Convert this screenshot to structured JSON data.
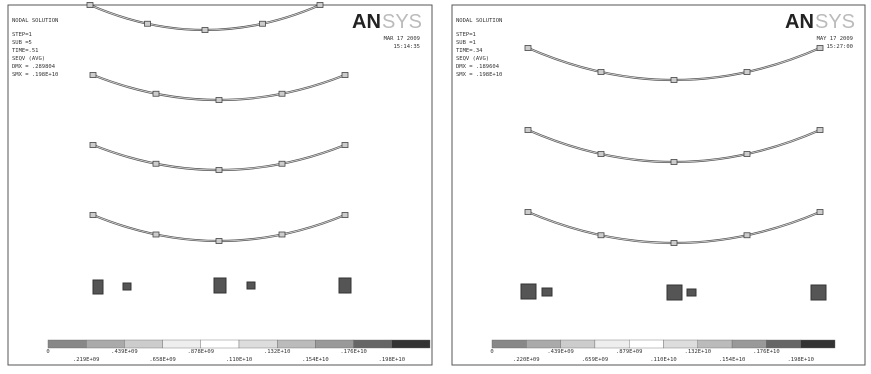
{
  "panels": [
    {
      "header": {
        "title": "NODAL SOLUTION",
        "lines": [
          "STEP=1",
          "SUB =5",
          "TIME=.51",
          "SEQV     (AVG)",
          "DMX = .289804",
          "SMX = .198E+10"
        ],
        "date": "MAR 17 2009",
        "time": "15:14:35",
        "logo_bold": "AN",
        "logo_light": "SYS"
      },
      "legend": {
        "top": [
          "0",
          ".439E+09",
          ".878E+09",
          ".132E+10",
          ".176E+10"
        ],
        "bottom": [
          ".219E+09",
          ".658E+09",
          ".110E+10",
          ".154E+10",
          ".198E+10"
        ]
      }
    },
    {
      "header": {
        "title": "NODAL SOLUTION",
        "lines": [
          "STEP=1",
          "SUB =1",
          "TIME=.34",
          "SEQV     (AVG)",
          "DMX = .189604",
          "SMX = .198E+10"
        ],
        "date": "MAY 17 2009",
        "time": "15:27:00",
        "logo_bold": "AN",
        "logo_light": "SYS"
      },
      "legend": {
        "top": [
          "0",
          ".439E+09",
          ".879E+09",
          ".132E+10",
          ".176E+10"
        ],
        "bottom": [
          ".220E+09",
          ".659E+09",
          ".110E+10",
          ".154E+10",
          ".198E+10"
        ]
      }
    }
  ]
}
